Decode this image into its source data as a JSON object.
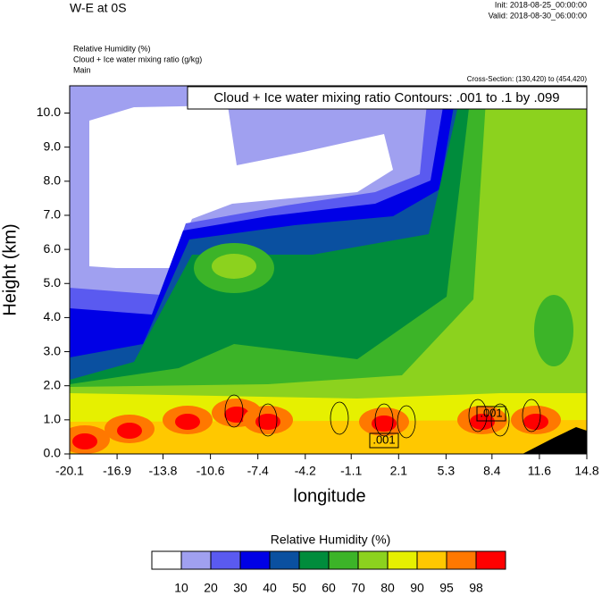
{
  "chart_data": {
    "type": "contour",
    "title": "W-E at 0S",
    "init": "Init: 2018-08-25_00:00:00",
    "valid": "Valid: 2018-08-30_06:00:00",
    "fields": [
      "Relative Humidity   (%)",
      "Cloud + Ice water mixing ratio   (g/kg)",
      "Main"
    ],
    "cross_section": "Cross-Section: (130,420) to (454,420)",
    "contour_note": "Cloud + Ice water mixing ratio Contours: .001 to .1 by .099",
    "contour_labels": [
      ".001",
      ".001"
    ],
    "xlabel": "longitude",
    "ylabel": "Height (km)",
    "xlim": [
      -20.1,
      14.8
    ],
    "xticks": [
      -20.1,
      -16.9,
      -13.8,
      -10.6,
      -7.4,
      -4.2,
      -1.1,
      2.1,
      5.3,
      8.4,
      11.6,
      14.8
    ],
    "ylim": [
      0,
      10.8
    ],
    "yticks": [
      {
        "value": 0,
        "label": "0.0"
      },
      {
        "value": 1,
        "label": "1.0"
      },
      {
        "value": 2,
        "label": "2.0"
      },
      {
        "value": 3,
        "label": "3.0"
      },
      {
        "value": 4,
        "label": "4.0"
      },
      {
        "value": 5,
        "label": "5.0"
      },
      {
        "value": 6,
        "label": "6.0"
      },
      {
        "value": 7,
        "label": "7.0"
      },
      {
        "value": 8,
        "label": "8.0"
      },
      {
        "value": 9,
        "label": "9.0"
      },
      {
        "value": 10,
        "label": "10.0"
      }
    ],
    "colorbar_title": "Relative Humidity  (%)",
    "levels": [
      10,
      20,
      30,
      40,
      50,
      60,
      70,
      80,
      90,
      95,
      98
    ],
    "colors": [
      "#ffffff",
      "#a0a0f0",
      "#5a5af0",
      "#0000e6",
      "#0a50a0",
      "#008c3c",
      "#3cb428",
      "#8cd21e",
      "#e6f000",
      "#ffc800",
      "#ff7800",
      "#ff0000"
    ]
  }
}
